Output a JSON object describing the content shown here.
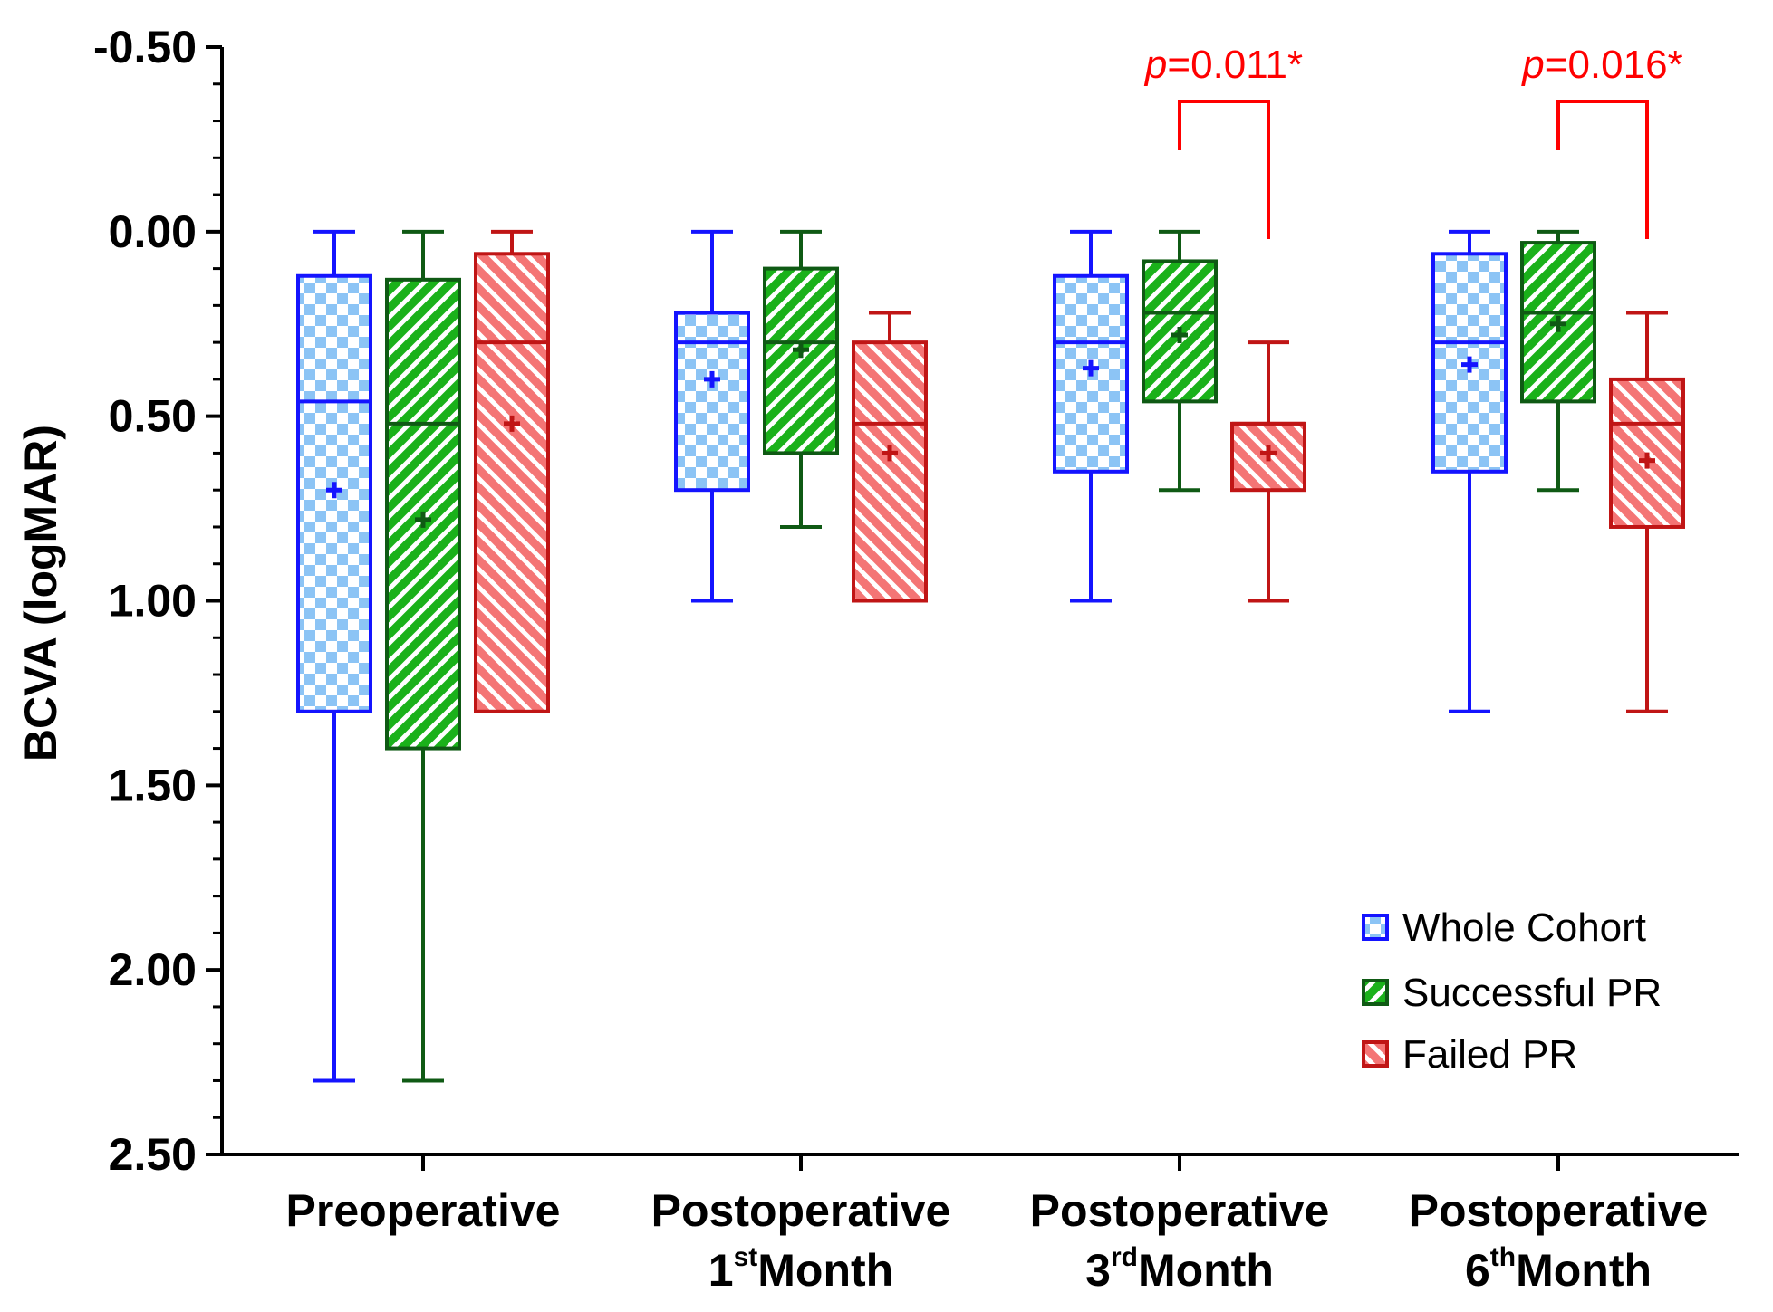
{
  "chart_data": {
    "type": "box",
    "ylabel": "BCVA (logMAR)",
    "y_axis_inverted": true,
    "ylim": [
      -0.5,
      2.5
    ],
    "yticks": [
      -0.5,
      0.0,
      0.5,
      1.0,
      1.5,
      2.0,
      2.5
    ],
    "ytick_labels": [
      "-0.50",
      "0.00",
      "0.50",
      "1.00",
      "1.50",
      "2.00",
      "2.50"
    ],
    "categories": [
      {
        "line1": "Preoperative",
        "line2_pre": "",
        "line2_sup": "",
        "line2_post": ""
      },
      {
        "line1": "Postoperative",
        "line2_pre": "1",
        "line2_sup": "st",
        "line2_post": "Month"
      },
      {
        "line1": "Postoperative",
        "line2_pre": "3",
        "line2_sup": "rd",
        "line2_post": "Month"
      },
      {
        "line1": "Postoperative",
        "line2_pre": "6",
        "line2_sup": "th",
        "line2_post": "Month"
      }
    ],
    "legend_position": "bottom-right",
    "series": [
      {
        "name": "Whole Cohort",
        "color": "#1414ff",
        "fill_a": "#8cc4f5",
        "fill_b": "#ffffff",
        "pattern": "checker",
        "boxes": [
          {
            "min": 0.0,
            "q1": 0.12,
            "median": 0.46,
            "q3": 1.3,
            "max": 2.3,
            "mean": 0.7
          },
          {
            "min": 0.0,
            "q1": 0.22,
            "median": 0.3,
            "q3": 0.7,
            "max": 1.0,
            "mean": 0.4
          },
          {
            "min": 0.0,
            "q1": 0.12,
            "median": 0.3,
            "q3": 0.65,
            "max": 1.0,
            "mean": 0.37
          },
          {
            "min": 0.0,
            "q1": 0.06,
            "median": 0.3,
            "q3": 0.65,
            "max": 1.3,
            "mean": 0.36
          }
        ]
      },
      {
        "name": "Successful PR",
        "color": "#0f5a14",
        "fill_a": "#1ab11a",
        "fill_b": "#ffffff",
        "pattern": "hatch-forward",
        "boxes": [
          {
            "min": 0.0,
            "q1": 0.13,
            "median": 0.52,
            "q3": 1.4,
            "max": 2.3,
            "mean": 0.78
          },
          {
            "min": 0.0,
            "q1": 0.1,
            "median": 0.3,
            "q3": 0.6,
            "max": 0.8,
            "mean": 0.32
          },
          {
            "min": 0.0,
            "q1": 0.08,
            "median": 0.22,
            "q3": 0.46,
            "max": 0.7,
            "mean": 0.28
          },
          {
            "min": 0.0,
            "q1": 0.03,
            "median": 0.22,
            "q3": 0.46,
            "max": 0.7,
            "mean": 0.25
          }
        ]
      },
      {
        "name": "Failed PR",
        "color": "#c01515",
        "fill_a": "#f47575",
        "fill_b": "#ffffff",
        "pattern": "hatch-back",
        "boxes": [
          {
            "min": 0.0,
            "q1": 0.06,
            "median": 0.3,
            "q3": 1.3,
            "max": 1.3,
            "mean": 0.52
          },
          {
            "min": 0.22,
            "q1": 0.3,
            "median": 0.52,
            "q3": 1.0,
            "max": 1.0,
            "mean": 0.6
          },
          {
            "min": 0.3,
            "q1": 0.52,
            "median": 0.52,
            "q3": 0.7,
            "max": 1.0,
            "mean": 0.6
          },
          {
            "min": 0.22,
            "q1": 0.4,
            "median": 0.52,
            "q3": 0.8,
            "max": 1.3,
            "mean": 0.62
          }
        ]
      }
    ],
    "annotations": [
      {
        "category_index": 2,
        "between": [
          "Successful PR",
          "Failed PR"
        ],
        "prefix": "p",
        "text": "=0.011*",
        "color": "#ff0000"
      },
      {
        "category_index": 3,
        "between": [
          "Successful PR",
          "Failed PR"
        ],
        "prefix": "p",
        "text": "=0.016*",
        "color": "#ff0000"
      }
    ]
  }
}
